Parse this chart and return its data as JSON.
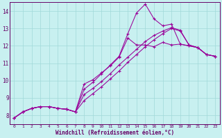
{
  "xlabel": "Windchill (Refroidissement éolien,°C)",
  "xlim": [
    -0.5,
    23.5
  ],
  "ylim": [
    7.5,
    14.5
  ],
  "xticks": [
    0,
    1,
    2,
    3,
    4,
    5,
    6,
    7,
    8,
    9,
    10,
    11,
    12,
    13,
    14,
    15,
    16,
    17,
    18,
    19,
    20,
    21,
    22,
    23
  ],
  "yticks": [
    8,
    9,
    10,
    11,
    12,
    13,
    14
  ],
  "bg_color": "#c8f0f0",
  "grid_color": "#a0d8d8",
  "line_color": "#990099",
  "series1_x": [
    0,
    1,
    2,
    3,
    4,
    5,
    6,
    7,
    8,
    9,
    10,
    11,
    12,
    13,
    14,
    15,
    16,
    17,
    18,
    19,
    20,
    21,
    22,
    23
  ],
  "series1_y": [
    7.85,
    8.2,
    8.4,
    8.5,
    8.5,
    8.4,
    8.35,
    8.2,
    9.8,
    10.05,
    10.45,
    10.85,
    11.35,
    12.45,
    12.05,
    12.05,
    11.95,
    12.2,
    12.05,
    12.1,
    12.0,
    11.9,
    11.5,
    11.4
  ],
  "series2_x": [
    0,
    1,
    2,
    3,
    4,
    5,
    6,
    7,
    8,
    9,
    10,
    11,
    12,
    13,
    14,
    15,
    16,
    17,
    18,
    19,
    20,
    21,
    22,
    23
  ],
  "series2_y": [
    7.85,
    8.2,
    8.4,
    8.5,
    8.5,
    8.4,
    8.35,
    8.2,
    9.5,
    9.9,
    10.4,
    10.9,
    11.4,
    12.7,
    13.9,
    14.4,
    13.55,
    13.15,
    13.25,
    12.1,
    12.0,
    11.9,
    11.5,
    11.4
  ],
  "series3_x": [
    0,
    1,
    2,
    3,
    4,
    5,
    6,
    7,
    8,
    9,
    10,
    11,
    12,
    13,
    14,
    15,
    16,
    17,
    18,
    19,
    20,
    21,
    22,
    23
  ],
  "series3_y": [
    7.85,
    8.2,
    8.4,
    8.5,
    8.5,
    8.4,
    8.35,
    8.2,
    9.2,
    9.55,
    9.95,
    10.4,
    10.9,
    11.35,
    11.8,
    12.25,
    12.6,
    12.85,
    13.05,
    12.9,
    12.05,
    11.9,
    11.5,
    11.4
  ],
  "series4_x": [
    0,
    1,
    2,
    3,
    4,
    5,
    6,
    7,
    8,
    9,
    10,
    11,
    12,
    13,
    14,
    15,
    16,
    17,
    18,
    19,
    20,
    21,
    22,
    23
  ],
  "series4_y": [
    7.85,
    8.2,
    8.4,
    8.5,
    8.5,
    8.4,
    8.35,
    8.2,
    8.85,
    9.25,
    9.65,
    10.1,
    10.55,
    11.05,
    11.5,
    11.95,
    12.35,
    12.7,
    13.0,
    12.85,
    12.05,
    11.9,
    11.5,
    11.4
  ]
}
